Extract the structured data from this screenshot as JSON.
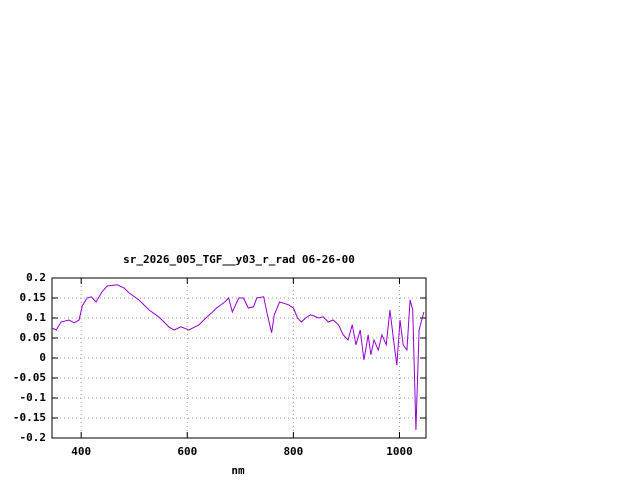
{
  "chart_data": {
    "type": "line",
    "title": "sr_2026_005_TGF__y03_r_rad 06-26-00",
    "x_label": "nm",
    "color": "#9400d3",
    "grid": true,
    "xlim": [
      345,
      1050
    ],
    "xticks": [
      400,
      600,
      800,
      1000
    ],
    "ylim": [
      -0.2,
      0.2
    ],
    "yticks": [
      0.2,
      0.15,
      0.1,
      0.05,
      0,
      -0.05,
      -0.1,
      -0.15,
      -0.2
    ],
    "x": [
      345,
      353,
      362,
      377,
      387,
      396,
      402,
      411,
      419,
      428,
      439,
      449,
      468,
      481,
      490,
      509,
      528,
      546,
      556,
      565,
      575,
      588,
      603,
      622,
      635,
      646,
      655,
      669,
      678,
      685,
      697,
      706,
      715,
      725,
      731,
      744,
      751,
      759,
      764,
      774,
      791,
      800,
      808,
      815,
      823,
      832,
      839,
      847,
      856,
      866,
      875,
      885,
      894,
      903,
      911,
      918,
      926,
      933,
      941,
      946,
      952,
      960,
      967,
      975,
      982,
      990,
      995,
      1001,
      1007,
      1014,
      1020,
      1025,
      1031,
      1037,
      1042,
      1046
    ],
    "values": [
      0.075,
      0.07,
      0.09,
      0.095,
      0.088,
      0.095,
      0.13,
      0.15,
      0.153,
      0.14,
      0.165,
      0.18,
      0.183,
      0.175,
      0.163,
      0.145,
      0.12,
      0.103,
      0.09,
      0.078,
      0.07,
      0.078,
      0.07,
      0.083,
      0.1,
      0.113,
      0.125,
      0.138,
      0.15,
      0.115,
      0.15,
      0.15,
      0.125,
      0.128,
      0.15,
      0.153,
      0.108,
      0.063,
      0.108,
      0.14,
      0.133,
      0.125,
      0.1,
      0.09,
      0.1,
      0.108,
      0.105,
      0.1,
      0.103,
      0.09,
      0.095,
      0.083,
      0.058,
      0.045,
      0.083,
      0.033,
      0.07,
      -0.005,
      0.058,
      0.008,
      0.045,
      0.02,
      0.058,
      0.033,
      0.12,
      0.033,
      -0.018,
      0.095,
      0.033,
      0.02,
      0.145,
      0.12,
      -0.18,
      0.07,
      0.095,
      0.115
    ]
  }
}
